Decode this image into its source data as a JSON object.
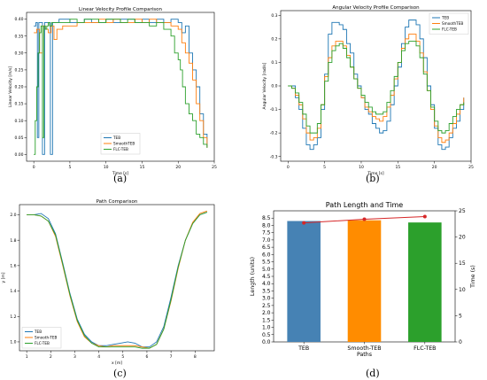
{
  "colors": {
    "teb": "#1f77b4",
    "smooth": "#ff7f0e",
    "flc": "#2ca02c",
    "dot": "#d62728"
  },
  "captions": {
    "a": "(a)",
    "b": "(b)",
    "c": "(c)",
    "d": "(d)"
  },
  "chart_data": [
    {
      "type": "line",
      "panel": "a",
      "title": "Linear Velocity Profile Comparison",
      "xlabel": "Time [s]",
      "ylabel": "Linear Velocity [m/s]",
      "xlim": [
        -1,
        25
      ],
      "ylim": [
        -0.02,
        0.42
      ],
      "xticks": [
        0,
        5,
        10,
        15,
        20,
        25
      ],
      "yticks": [
        0.0,
        0.05,
        0.1,
        0.15,
        0.2,
        0.25,
        0.3,
        0.35,
        0.4
      ],
      "legend": "bottom-center",
      "series": [
        {
          "name": "TEB",
          "key": "teb",
          "x": [
            0,
            0.3,
            0.5,
            0.7,
            1.0,
            1.2,
            1.5,
            2.0,
            2.3,
            2.6,
            3.0,
            3.5,
            4,
            5,
            6,
            7,
            8,
            9,
            10,
            11,
            12,
            13,
            14,
            15,
            16,
            17,
            18,
            19,
            20,
            20.5,
            21,
            21.5,
            22,
            22.5,
            23,
            23.5,
            24
          ],
          "y": [
            0.38,
            0.39,
            0.05,
            0.39,
            0.39,
            0.0,
            0.39,
            0.39,
            0.0,
            0.39,
            0.39,
            0.4,
            0.4,
            0.39,
            0.39,
            0.4,
            0.39,
            0.39,
            0.4,
            0.39,
            0.4,
            0.4,
            0.39,
            0.4,
            0.39,
            0.4,
            0.39,
            0.4,
            0.39,
            0.36,
            0.38,
            0.3,
            0.25,
            0.2,
            0.12,
            0.06,
            0.02
          ]
        },
        {
          "name": "SmoothTEB",
          "key": "smooth",
          "x": [
            0,
            0.4,
            0.8,
            1.2,
            1.6,
            2.0,
            2.4,
            2.8,
            3.2,
            4,
            5,
            6,
            7,
            8,
            9,
            10,
            11,
            12,
            13,
            14,
            15,
            16,
            17,
            18,
            19,
            20,
            20.5,
            21,
            21.5,
            22,
            22.5,
            23,
            23.5,
            24
          ],
          "y": [
            0.36,
            0.37,
            0.3,
            0.38,
            0.37,
            0.36,
            0.38,
            0.34,
            0.37,
            0.38,
            0.38,
            0.39,
            0.39,
            0.39,
            0.4,
            0.39,
            0.4,
            0.39,
            0.39,
            0.4,
            0.39,
            0.4,
            0.39,
            0.39,
            0.38,
            0.37,
            0.33,
            0.3,
            0.27,
            0.22,
            0.15,
            0.1,
            0.05,
            0.02
          ]
        },
        {
          "name": "FLC-TEB",
          "key": "flc",
          "x": [
            0,
            0.2,
            0.4,
            0.6,
            0.8,
            1.0,
            1.2,
            1.4,
            1.6,
            1.8,
            2.0,
            2.2,
            2.5,
            3,
            4,
            5,
            6,
            7,
            8,
            9,
            10,
            11,
            12,
            13,
            14,
            15,
            16,
            17,
            18,
            19,
            19.5,
            20,
            20.3,
            20.6,
            21,
            21.5,
            22,
            22.5,
            23,
            23.5,
            24
          ],
          "y": [
            0.0,
            0.1,
            0.2,
            0.3,
            0.36,
            0.38,
            0.05,
            0.38,
            0.37,
            0.38,
            0.39,
            0.38,
            0.39,
            0.39,
            0.39,
            0.4,
            0.39,
            0.4,
            0.4,
            0.39,
            0.4,
            0.4,
            0.39,
            0.4,
            0.39,
            0.39,
            0.38,
            0.39,
            0.37,
            0.35,
            0.3,
            0.28,
            0.25,
            0.2,
            0.15,
            0.12,
            0.1,
            0.06,
            0.05,
            0.03,
            0.02
          ]
        }
      ]
    },
    {
      "type": "line",
      "panel": "b",
      "title": "Angular Velocity Profile Comparison",
      "xlabel": "Time [s]",
      "ylabel": "Angular Velocity [rad/s]",
      "xlim": [
        -1,
        25
      ],
      "ylim": [
        -0.32,
        0.32
      ],
      "xticks": [
        0,
        5,
        10,
        15,
        20,
        25
      ],
      "yticks": [
        -0.3,
        -0.2,
        -0.1,
        0.0,
        0.1,
        0.2,
        0.3
      ],
      "legend": "top-right",
      "series": [
        {
          "name": "TEB",
          "key": "teb",
          "x": [
            0,
            0.5,
            1,
            1.5,
            2,
            2.5,
            3,
            3.5,
            4,
            4.5,
            5,
            5.5,
            6,
            6.5,
            7,
            7.5,
            8,
            8.5,
            9,
            9.5,
            10,
            10.5,
            11,
            11.5,
            12,
            12.5,
            13,
            13.5,
            14,
            14.5,
            15,
            15.5,
            16,
            16.5,
            17,
            17.5,
            18,
            18.5,
            19,
            19.5,
            20,
            20.5,
            21,
            21.5,
            22,
            22.5,
            23,
            23.5,
            24
          ],
          "y": [
            0.0,
            0.0,
            -0.05,
            -0.1,
            -0.18,
            -0.25,
            -0.27,
            -0.25,
            -0.22,
            -0.1,
            0.05,
            0.22,
            0.27,
            0.27,
            0.26,
            0.24,
            0.18,
            0.14,
            0.05,
            0.0,
            -0.05,
            -0.1,
            -0.12,
            -0.16,
            -0.18,
            -0.2,
            -0.19,
            -0.15,
            -0.08,
            0.0,
            0.08,
            0.18,
            0.25,
            0.28,
            0.28,
            0.26,
            0.2,
            0.12,
            0.0,
            -0.08,
            -0.18,
            -0.25,
            -0.27,
            -0.26,
            -0.22,
            -0.18,
            -0.15,
            -0.1,
            -0.05
          ]
        },
        {
          "name": "SmoothTEB",
          "key": "smooth",
          "x": [
            0,
            0.5,
            1,
            1.5,
            2,
            2.5,
            3,
            3.5,
            4,
            4.5,
            5,
            5.5,
            6,
            6.5,
            7,
            7.5,
            8,
            8.5,
            9,
            9.5,
            10,
            10.5,
            11,
            11.5,
            12,
            12.5,
            13,
            13.5,
            14,
            14.5,
            15,
            15.5,
            16,
            16.5,
            17,
            17.5,
            18,
            18.5,
            19,
            19.5,
            20,
            20.5,
            21,
            21.5,
            22,
            22.5,
            23,
            23.5,
            24
          ],
          "y": [
            0.0,
            -0.01,
            -0.04,
            -0.08,
            -0.14,
            -0.2,
            -0.23,
            -0.22,
            -0.18,
            -0.08,
            0.04,
            0.12,
            0.17,
            0.19,
            0.19,
            0.17,
            0.13,
            0.08,
            0.03,
            -0.01,
            -0.05,
            -0.09,
            -0.11,
            -0.13,
            -0.14,
            -0.15,
            -0.13,
            -0.09,
            -0.04,
            0.03,
            0.1,
            0.16,
            0.2,
            0.22,
            0.22,
            0.19,
            0.14,
            0.06,
            -0.02,
            -0.1,
            -0.17,
            -0.22,
            -0.24,
            -0.23,
            -0.2,
            -0.16,
            -0.12,
            -0.08,
            -0.05
          ]
        },
        {
          "name": "FLC-TEB",
          "key": "flc",
          "x": [
            0,
            0.5,
            1,
            1.5,
            2,
            2.5,
            3,
            3.5,
            4,
            4.5,
            5,
            5.5,
            6,
            6.5,
            7,
            7.5,
            8,
            8.5,
            9,
            9.5,
            10,
            10.5,
            11,
            11.5,
            12,
            12.5,
            13,
            13.5,
            14,
            14.5,
            15,
            15.5,
            16,
            16.5,
            17,
            17.5,
            18,
            18.5,
            19,
            19.5,
            20,
            20.5,
            21,
            21.5,
            22,
            22.5,
            23,
            23.5,
            24
          ],
          "y": [
            0.0,
            -0.01,
            -0.03,
            -0.07,
            -0.12,
            -0.17,
            -0.2,
            -0.2,
            -0.16,
            -0.08,
            0.02,
            0.1,
            0.15,
            0.17,
            0.18,
            0.16,
            0.12,
            0.08,
            0.03,
            -0.01,
            -0.04,
            -0.07,
            -0.09,
            -0.11,
            -0.12,
            -0.12,
            -0.11,
            -0.07,
            -0.02,
            0.04,
            0.1,
            0.15,
            0.18,
            0.19,
            0.19,
            0.17,
            0.12,
            0.05,
            -0.02,
            -0.09,
            -0.15,
            -0.19,
            -0.2,
            -0.19,
            -0.16,
            -0.13,
            -0.1,
            -0.08,
            -0.07
          ]
        }
      ]
    },
    {
      "type": "line",
      "panel": "c",
      "title": "Path Comparison",
      "xlabel": "x [m]",
      "ylabel": "y [m]",
      "xlim": [
        0.7,
        8.8
      ],
      "ylim": [
        0.93,
        2.08
      ],
      "xticks": [
        1,
        2,
        3,
        4,
        5,
        6,
        7,
        8
      ],
      "yticks": [
        1.0,
        1.2,
        1.4,
        1.6,
        1.8,
        2.0
      ],
      "legend": "bottom-left",
      "series": [
        {
          "name": "TEB",
          "key": "teb",
          "x": [
            1.0,
            1.3,
            1.6,
            1.9,
            2.2,
            2.5,
            2.8,
            3.1,
            3.4,
            3.7,
            4.0,
            4.3,
            4.6,
            4.9,
            5.2,
            5.5,
            5.8,
            6.1,
            6.4,
            6.7,
            7.0,
            7.3,
            7.6,
            7.9,
            8.2,
            8.5
          ],
          "y": [
            2.0,
            2.0,
            2.01,
            1.97,
            1.85,
            1.62,
            1.38,
            1.18,
            1.06,
            1.0,
            0.97,
            0.97,
            0.98,
            0.99,
            1.0,
            0.99,
            0.96,
            0.96,
            1.0,
            1.12,
            1.35,
            1.6,
            1.8,
            1.93,
            2.0,
            2.02
          ]
        },
        {
          "name": "Smooth-TEB",
          "key": "smooth",
          "x": [
            1.0,
            1.3,
            1.6,
            1.9,
            2.2,
            2.5,
            2.8,
            3.1,
            3.4,
            3.7,
            4.0,
            4.3,
            4.6,
            4.9,
            5.2,
            5.5,
            5.8,
            6.1,
            6.4,
            6.7,
            7.0,
            7.3,
            7.6,
            7.9,
            8.2,
            8.5
          ],
          "y": [
            2.0,
            2.0,
            1.99,
            1.95,
            1.83,
            1.6,
            1.36,
            1.16,
            1.04,
            0.99,
            0.97,
            0.96,
            0.97,
            0.97,
            0.97,
            0.97,
            0.96,
            0.95,
            0.98,
            1.1,
            1.32,
            1.58,
            1.8,
            1.94,
            2.01,
            2.03
          ]
        },
        {
          "name": "FLC-TEB",
          "key": "flc",
          "x": [
            1.0,
            1.3,
            1.6,
            1.9,
            2.2,
            2.5,
            2.8,
            3.1,
            3.4,
            3.7,
            4.0,
            4.3,
            4.6,
            4.9,
            5.2,
            5.5,
            5.8,
            6.1,
            6.4,
            6.7,
            7.0,
            7.3,
            7.6,
            7.9,
            8.2,
            8.5
          ],
          "y": [
            2.0,
            2.0,
            1.99,
            1.95,
            1.84,
            1.61,
            1.37,
            1.17,
            1.05,
            0.99,
            0.96,
            0.96,
            0.96,
            0.96,
            0.96,
            0.96,
            0.95,
            0.95,
            0.98,
            1.1,
            1.33,
            1.59,
            1.8,
            1.93,
            2.0,
            2.02
          ]
        }
      ]
    },
    {
      "type": "bar",
      "panel": "d",
      "title": "Path Length and Time",
      "xlabel": "Paths",
      "ylabel": "Length (units)",
      "y2label": "Time (s)",
      "categories": [
        "TEB",
        "Smooth-TEB",
        "FLC-TEB"
      ],
      "values": [
        8.3,
        8.35,
        8.2
      ],
      "bar_colors": [
        "#4682b4",
        "#ff8c00",
        "#2ca02c"
      ],
      "ylim": [
        0,
        9
      ],
      "yticks": [
        0,
        0.5,
        1.0,
        1.5,
        2.0,
        2.5,
        3.0,
        3.5,
        4.0,
        4.5,
        5.0,
        5.5,
        6.0,
        6.5,
        7.0,
        7.5,
        8.0,
        8.5
      ],
      "y2lim": [
        0,
        25
      ],
      "y2ticks": [
        0,
        5,
        10,
        15,
        20,
        25
      ],
      "time_values": [
        22.7,
        23.4,
        23.9
      ]
    }
  ]
}
